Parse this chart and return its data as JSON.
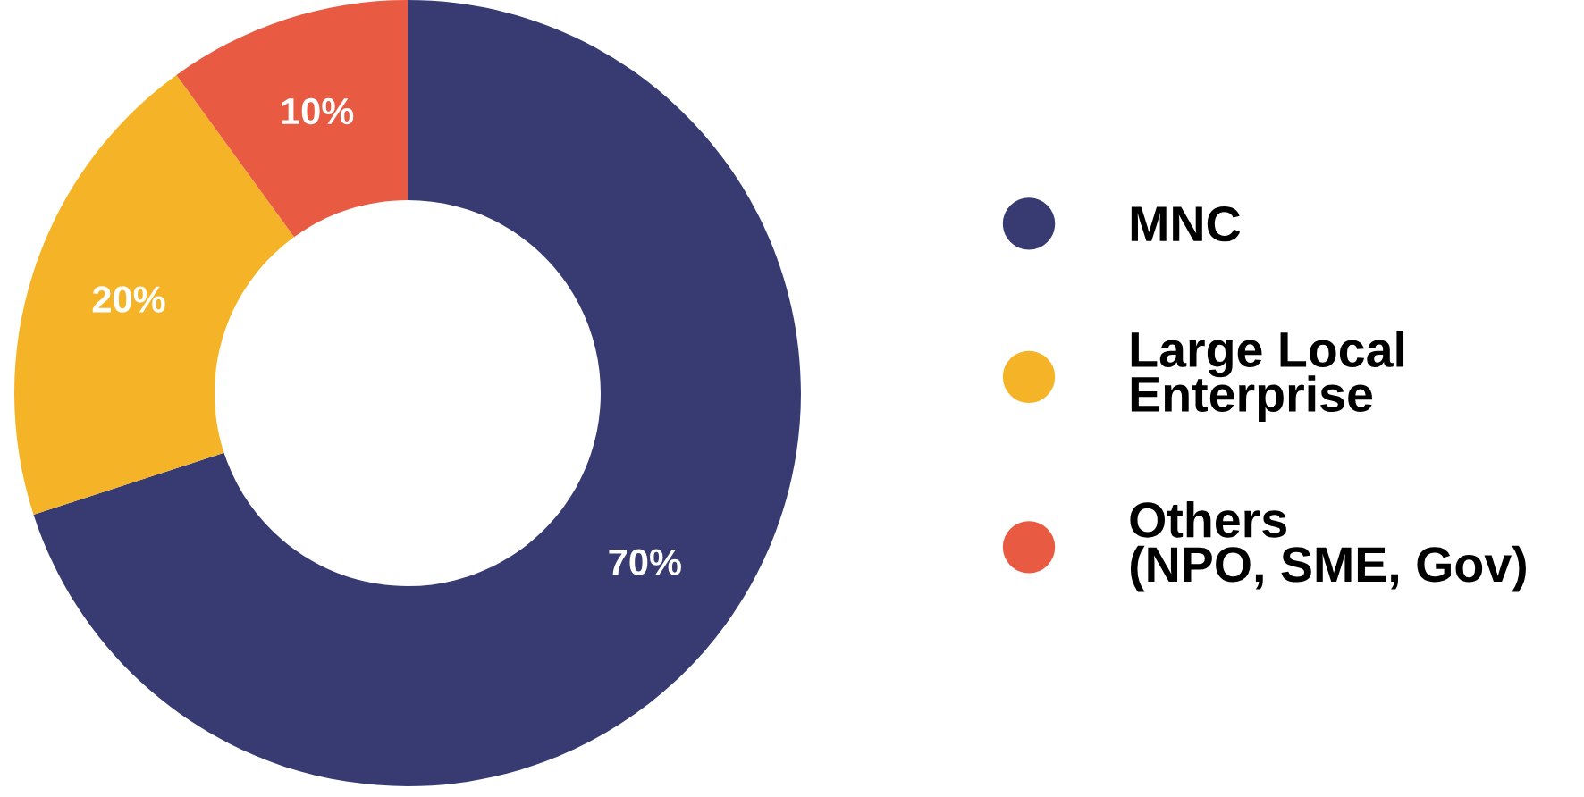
{
  "chart_data": {
    "type": "donut",
    "categories": [
      "MNC",
      "Large Local\nEnterprise",
      "Others\n(NPO, SME, Gov)"
    ],
    "values": [
      70,
      20,
      10
    ],
    "colors": [
      "#373b72",
      "#f5b427",
      "#e95a43"
    ],
    "value_labels": [
      "70%",
      "20%",
      "10%"
    ],
    "legend": "right"
  }
}
